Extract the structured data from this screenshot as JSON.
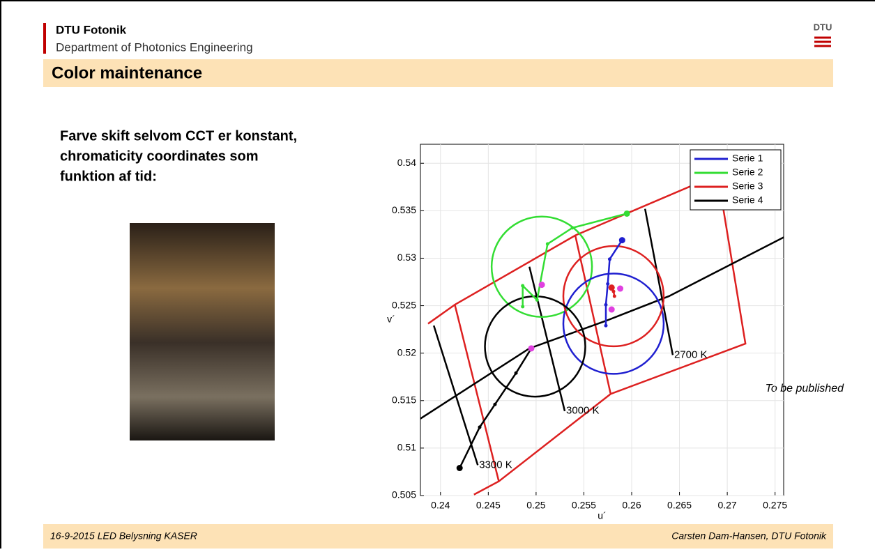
{
  "header": {
    "org": "DTU Fotonik",
    "department": "Department of Photonics Engineering",
    "logo": "DTU"
  },
  "title": "Color maintenance",
  "body": [
    "Farve skift selvom CCT er konstant,",
    "chromaticity coordinates som",
    "funktion af tid:"
  ],
  "note": "To be published",
  "footer": {
    "left": "16-9-2015  LED Belysning KASER",
    "right": "Carsten Dam-Hansen, DTU Fotonik"
  },
  "chart_data": {
    "type": "line",
    "x_label": "u´",
    "y_label": "v´",
    "xlim": [
      0.2379,
      0.2759
    ],
    "ylim": [
      0.505,
      0.542
    ],
    "xticks": [
      0.24,
      0.245,
      0.25,
      0.255,
      0.26,
      0.265,
      0.27,
      0.275
    ],
    "yticks": [
      0.505,
      0.51,
      0.515,
      0.52,
      0.525,
      0.53,
      0.535,
      0.54
    ],
    "legend": "upper right",
    "series": [
      {
        "name": "Serie 1",
        "color": "#1f1fd0",
        "x": [
          0.259,
          0.2577,
          0.2575,
          0.2573,
          0.2573
        ],
        "values": [
          0.5319,
          0.5299,
          0.5273,
          0.5251,
          0.5229
        ]
      },
      {
        "name": "Serie 2",
        "color": "#33dd33",
        "x": [
          0.2595,
          0.2538,
          0.2512,
          0.2501,
          0.2486,
          0.2486
        ],
        "values": [
          0.5347,
          0.5332,
          0.5315,
          0.5256,
          0.5271,
          0.5249
        ]
      },
      {
        "name": "Serie 3",
        "color": "#dd2020",
        "x": [
          0.2579,
          0.2581,
          0.2582
        ],
        "values": [
          0.5269,
          0.5265,
          0.526
        ]
      },
      {
        "name": "Serie 4",
        "color": "#000000",
        "x": [
          0.242,
          0.2441,
          0.2457,
          0.2479,
          0.2495
        ],
        "values": [
          0.5079,
          0.5122,
          0.5146,
          0.5179,
          0.5205
        ]
      }
    ],
    "locus": {
      "color": "#000000",
      "x": [
        0.2379,
        0.2493,
        0.2573,
        0.2639,
        0.2759
      ],
      "y": [
        0.5131,
        0.5205,
        0.5234,
        0.526,
        0.5322
      ]
    },
    "isotherms": [
      {
        "label": "3300 K",
        "x": [
          0.2393,
          0.2439
        ],
        "y": [
          0.5229,
          0.5082
        ]
      },
      {
        "label": "3000 K",
        "x": [
          0.2493,
          0.253
        ],
        "y": [
          0.5291,
          0.5139
        ]
      },
      {
        "label": "2700 K",
        "x": [
          0.2614,
          0.2643
        ],
        "y": [
          0.5352,
          0.5198
        ]
      }
    ],
    "tolerance_lines": [
      {
        "color": "#dd2020",
        "x": [
          0.2387,
          0.2415,
          0.2541,
          0.269,
          0.2719,
          0.2578,
          0.2461,
          0.2435
        ],
        "y": [
          0.5231,
          0.5251,
          0.5324,
          0.5388,
          0.521,
          0.5157,
          0.5065,
          0.5051
        ]
      },
      {
        "color": "#dd2020",
        "x": [
          0.2415,
          0.2461
        ],
        "y": [
          0.5251,
          0.5065
        ]
      },
      {
        "color": "#dd2020",
        "x": [
          0.2541,
          0.2578
        ],
        "y": [
          0.5324,
          0.5157
        ]
      }
    ],
    "circles": [
      {
        "cx": 0.2506,
        "cy": 0.5291,
        "r": 0.00525,
        "color": "#33dd33"
      },
      {
        "cx": 0.2581,
        "cy": 0.5231,
        "r": 0.00525,
        "color": "#1f1fd0"
      },
      {
        "cx": 0.2581,
        "cy": 0.526,
        "r": 0.00525,
        "color": "#dd2020"
      },
      {
        "cx": 0.2499,
        "cy": 0.5207,
        "r": 0.00525,
        "color": "#000000"
      }
    ],
    "markers": {
      "color": "#e040e0",
      "x": [
        0.2506,
        0.2579,
        0.2588,
        0.2495
      ],
      "y": [
        0.5272,
        0.5246,
        0.5268,
        0.5205
      ]
    }
  }
}
